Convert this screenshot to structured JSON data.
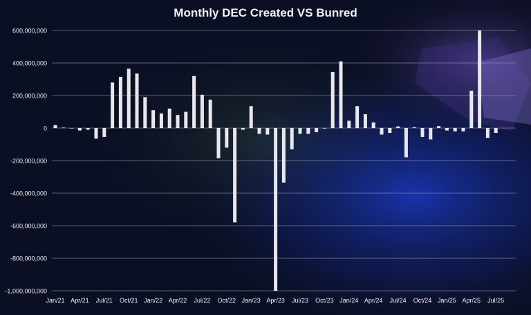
{
  "colors": {
    "background": "#0b0f24",
    "bar": "#e8e8ea",
    "grid": "#8c91a5",
    "text": "#f2f2f2"
  },
  "chart_data": {
    "type": "bar",
    "title": "Monthly DEC Created VS Bunred",
    "xlabel": "",
    "ylabel": "",
    "ylim": [
      -1000000000,
      600000000
    ],
    "grid": true,
    "y_ticks": [
      {
        "value": 600000000,
        "label": "600,000,000"
      },
      {
        "value": 400000000,
        "label": "400,000,000"
      },
      {
        "value": 200000000,
        "label": "200,000,000"
      },
      {
        "value": 0,
        "label": "0"
      },
      {
        "value": -200000000,
        "label": "-200,000,000"
      },
      {
        "value": -400000000,
        "label": "-400,000,000"
      },
      {
        "value": -600000000,
        "label": "-600,000,000"
      },
      {
        "value": -800000000,
        "label": "-800,000,000"
      },
      {
        "value": -1000000000,
        "label": "-1,000,000,000"
      }
    ],
    "x_tick_labels": [
      {
        "index": 0,
        "label": "Jan/21"
      },
      {
        "index": 3,
        "label": "Apr/21"
      },
      {
        "index": 6,
        "label": "Jul/21"
      },
      {
        "index": 9,
        "label": "Oct/21"
      },
      {
        "index": 12,
        "label": "Jan/22"
      },
      {
        "index": 15,
        "label": "Apr/22"
      },
      {
        "index": 18,
        "label": "Jul/22"
      },
      {
        "index": 21,
        "label": "Oct/22"
      },
      {
        "index": 24,
        "label": "Jan/23"
      },
      {
        "index": 27,
        "label": "Apr/23"
      },
      {
        "index": 30,
        "label": "Jul/23"
      },
      {
        "index": 33,
        "label": "Oct/23"
      },
      {
        "index": 36,
        "label": "Jan/24"
      },
      {
        "index": 39,
        "label": "Apr/24"
      },
      {
        "index": 42,
        "label": "Jul/24"
      },
      {
        "index": 45,
        "label": "Oct/24"
      },
      {
        "index": 48,
        "label": "Jan/25"
      },
      {
        "index": 51,
        "label": "Apr/25"
      },
      {
        "index": 54,
        "label": "Jul/25"
      }
    ],
    "categories": [
      "Jan/21",
      "Feb/21",
      "Mar/21",
      "Apr/21",
      "May/21",
      "Jun/21",
      "Jul/21",
      "Aug/21",
      "Sep/21",
      "Oct/21",
      "Nov/21",
      "Dec/21",
      "Jan/22",
      "Feb/22",
      "Mar/22",
      "Apr/22",
      "May/22",
      "Jun/22",
      "Jul/22",
      "Aug/22",
      "Sep/22",
      "Oct/22",
      "Nov/22",
      "Dec/22",
      "Jan/23",
      "Feb/23",
      "Mar/23",
      "Apr/23",
      "May/23",
      "Jun/23",
      "Jul/23",
      "Aug/23",
      "Sep/23",
      "Oct/23",
      "Nov/23",
      "Dec/23",
      "Jan/24",
      "Feb/24",
      "Mar/24",
      "Apr/24",
      "May/24",
      "Jun/24",
      "Jul/24",
      "Aug/24",
      "Sep/24",
      "Oct/24",
      "Nov/24",
      "Dec/24",
      "Jan/25",
      "Feb/25",
      "Mar/25",
      "Apr/25",
      "May/25",
      "Jun/25",
      "Jul/25"
    ],
    "values": [
      18000000,
      3000000,
      -2000000,
      -15000000,
      -10000000,
      -65000000,
      -55000000,
      280000000,
      315000000,
      365000000,
      335000000,
      190000000,
      110000000,
      90000000,
      120000000,
      80000000,
      100000000,
      320000000,
      205000000,
      175000000,
      -185000000,
      -120000000,
      -580000000,
      -10000000,
      135000000,
      -35000000,
      -40000000,
      -1000000000,
      -335000000,
      -130000000,
      -35000000,
      -35000000,
      -25000000,
      -3000000,
      345000000,
      410000000,
      45000000,
      135000000,
      85000000,
      35000000,
      -40000000,
      -30000000,
      10000000,
      -180000000,
      5000000,
      -55000000,
      -70000000,
      12000000,
      -15000000,
      -20000000,
      -20000000,
      230000000,
      600000000,
      -60000000,
      -30000000
    ]
  }
}
